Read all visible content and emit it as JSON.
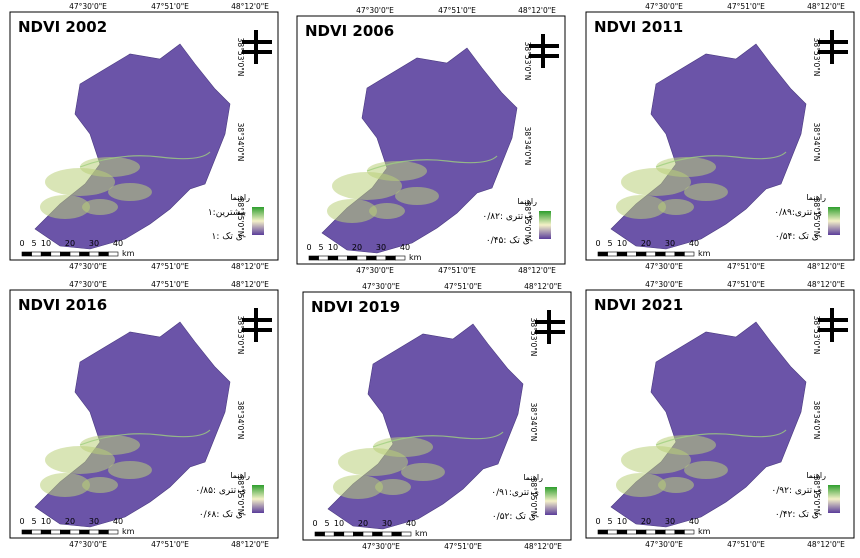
{
  "panels": [
    {
      "title": "NDVI 2002",
      "high": "بیشترین:۱",
      "low": "ی تک :۱-"
    },
    {
      "title": "NDVI 2006",
      "high": "ی تتری :۰/۸۲",
      "low": "ی تک :۰/۴۵-"
    },
    {
      "title": "NDVI 2011",
      "high": "ی تتری:۰/۸۹",
      "low": "ی تک :۰/۵۴-"
    },
    {
      "title": "NDVI 2016",
      "high": "ی تتری :۰/۸۵",
      "low": "ی تک :۰/۶۸-"
    },
    {
      "title": "NDVI 2019",
      "high": "ی تتری:۰/۹۱",
      "low": "ی تک :۰/۵۲-"
    },
    {
      "title": "NDVI 2021",
      "high": "ی تتری :۰/۹۲",
      "low": "ی تک :۰/۴۲-"
    }
  ],
  "legend_title": "راهنما",
  "longitudes": [
    "47°30'0\"E",
    "47°51'0\"E",
    "48°12'0\"E"
  ],
  "latitudes": [
    "38°53'0\"N",
    "38°34'0\"N",
    "38°15'0\"N"
  ],
  "scale_bar": {
    "ticks": [
      "0",
      "5",
      "10",
      "20",
      "30",
      "40"
    ],
    "unit": "km"
  }
}
